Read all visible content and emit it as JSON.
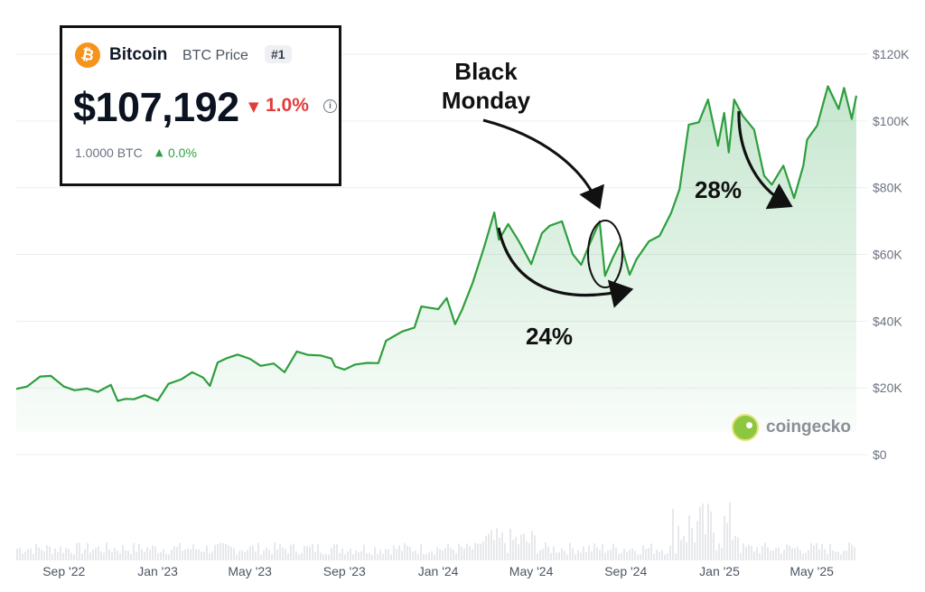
{
  "card": {
    "coin_name": "Bitcoin",
    "coin_sub": "BTC Price",
    "rank": "#1",
    "price": "$107,192",
    "change": "1.0%",
    "change_direction": "down",
    "btc_amount": "1.0000 BTC",
    "btc_change": "0.0%",
    "btc_change_direction": "up",
    "icon": "bitcoin-icon",
    "info_icon": "info-icon",
    "colors": {
      "bitcoin": "#f7931a",
      "down": "#e23b3b",
      "up": "#2ea043"
    }
  },
  "annotations": {
    "black_monday": "Black\nMonday",
    "drawdown_2024": "24%",
    "drawdown_2025": "28%"
  },
  "brand": {
    "name": "coingecko",
    "icon": "coingecko-icon"
  },
  "chart_data": {
    "type": "area",
    "title": "",
    "xlabel": "",
    "ylabel": "",
    "x_type": "date",
    "xlim": [
      "2022-07-01",
      "2025-06-28"
    ],
    "ylim": [
      0,
      120000
    ],
    "y_ticks": [
      {
        "value": 0,
        "label": "$0"
      },
      {
        "value": 20000,
        "label": "$20K"
      },
      {
        "value": 40000,
        "label": "$40K"
      },
      {
        "value": 60000,
        "label": "$60K"
      },
      {
        "value": 80000,
        "label": "$80K"
      },
      {
        "value": 100000,
        "label": "$100K"
      },
      {
        "value": 120000,
        "label": "$120K"
      }
    ],
    "x_ticks": [
      {
        "value": "2022-09-01",
        "label": "Sep '22"
      },
      {
        "value": "2023-01-01",
        "label": "Jan '23"
      },
      {
        "value": "2023-05-01",
        "label": "May '23"
      },
      {
        "value": "2023-09-01",
        "label": "Sep '23"
      },
      {
        "value": "2024-01-01",
        "label": "Jan '24"
      },
      {
        "value": "2024-05-01",
        "label": "May '24"
      },
      {
        "value": "2024-09-01",
        "label": "Sep '24"
      },
      {
        "value": "2025-01-01",
        "label": "Jan '25"
      },
      {
        "value": "2025-05-01",
        "label": "May '25"
      }
    ],
    "grid": true,
    "line_color": "#2e9e3e",
    "series": [
      {
        "points": [
          [
            "2022-07-01",
            19300
          ],
          [
            "2022-07-15",
            20800
          ],
          [
            "2022-08-01",
            23000
          ],
          [
            "2022-08-15",
            24000
          ],
          [
            "2022-09-01",
            20000
          ],
          [
            "2022-09-15",
            19700
          ],
          [
            "2022-10-01",
            19400
          ],
          [
            "2022-10-15",
            19200
          ],
          [
            "2022-11-01",
            20500
          ],
          [
            "2022-11-10",
            16500
          ],
          [
            "2022-11-20",
            16300
          ],
          [
            "2022-12-01",
            17000
          ],
          [
            "2022-12-15",
            17400
          ],
          [
            "2023-01-01",
            16600
          ],
          [
            "2023-01-15",
            20800
          ],
          [
            "2023-02-01",
            23000
          ],
          [
            "2023-02-15",
            24300
          ],
          [
            "2023-03-01",
            23500
          ],
          [
            "2023-03-10",
            20200
          ],
          [
            "2023-03-20",
            28000
          ],
          [
            "2023-04-01",
            28500
          ],
          [
            "2023-04-15",
            30400
          ],
          [
            "2023-05-01",
            28300
          ],
          [
            "2023-05-15",
            27000
          ],
          [
            "2023-06-01",
            26900
          ],
          [
            "2023-06-15",
            25100
          ],
          [
            "2023-07-01",
            30500
          ],
          [
            "2023-07-15",
            30300
          ],
          [
            "2023-08-01",
            29300
          ],
          [
            "2023-08-15",
            29200
          ],
          [
            "2023-08-20",
            26000
          ],
          [
            "2023-09-01",
            25900
          ],
          [
            "2023-09-15",
            26600
          ],
          [
            "2023-10-01",
            27900
          ],
          [
            "2023-10-15",
            27000
          ],
          [
            "2023-10-25",
            34500
          ],
          [
            "2023-11-15",
            36500
          ],
          [
            "2023-12-01",
            38500
          ],
          [
            "2023-12-10",
            44000
          ],
          [
            "2024-01-01",
            44000
          ],
          [
            "2024-01-12",
            46500
          ],
          [
            "2024-01-23",
            39500
          ],
          [
            "2024-02-01",
            43000
          ],
          [
            "2024-02-15",
            52000
          ],
          [
            "2024-03-01",
            62000
          ],
          [
            "2024-03-14",
            73000
          ],
          [
            "2024-03-20",
            64000
          ],
          [
            "2024-04-01",
            69500
          ],
          [
            "2024-04-15",
            63500
          ],
          [
            "2024-05-01",
            57500
          ],
          [
            "2024-05-15",
            66000
          ],
          [
            "2024-05-25",
            69000
          ],
          [
            "2024-06-10",
            69500
          ],
          [
            "2024-06-24",
            60500
          ],
          [
            "2024-07-05",
            56500
          ],
          [
            "2024-07-15",
            63000
          ],
          [
            "2024-07-29",
            69500
          ],
          [
            "2024-08-05",
            54000
          ],
          [
            "2024-08-15",
            58500
          ],
          [
            "2024-08-25",
            64000
          ],
          [
            "2024-09-06",
            53500
          ],
          [
            "2024-09-15",
            59000
          ],
          [
            "2024-10-01",
            63500
          ],
          [
            "2024-10-15",
            66000
          ],
          [
            "2024-10-30",
            72000
          ],
          [
            "2024-11-10",
            80000
          ],
          [
            "2024-11-22",
            98500
          ],
          [
            "2024-12-05",
            100000
          ],
          [
            "2024-12-17",
            106000
          ],
          [
            "2024-12-30",
            93000
          ],
          [
            "2025-01-07",
            102000
          ],
          [
            "2025-01-13",
            91000
          ],
          [
            "2025-01-20",
            106000
          ],
          [
            "2025-01-31",
            102000
          ],
          [
            "2025-02-15",
            97000
          ],
          [
            "2025-02-28",
            84000
          ],
          [
            "2025-03-10",
            80500
          ],
          [
            "2025-03-25",
            87000
          ],
          [
            "2025-04-08",
            76500
          ],
          [
            "2025-04-20",
            87000
          ],
          [
            "2025-04-25",
            94000
          ],
          [
            "2025-05-08",
            99000
          ],
          [
            "2025-05-22",
            110000
          ],
          [
            "2025-06-05",
            104000
          ],
          [
            "2025-06-12",
            109500
          ],
          [
            "2025-06-22",
            101000
          ],
          [
            "2025-06-28",
            107192
          ]
        ]
      }
    ]
  }
}
